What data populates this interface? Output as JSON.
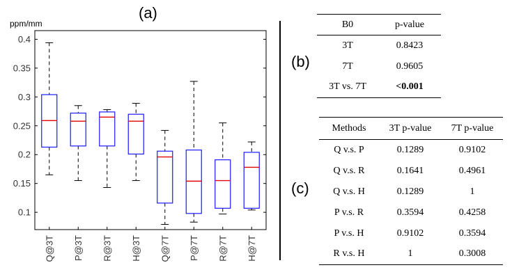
{
  "chart_data": {
    "type": "box",
    "title": "(a)",
    "ylabel": "ppm/mm",
    "ylim": [
      0.07,
      0.415
    ],
    "yticks": [
      0.1,
      0.15,
      0.2,
      0.25,
      0.3,
      0.35,
      0.4
    ],
    "ytick_labels": [
      "0.1",
      "0.15",
      "0.2",
      "0.25",
      "0.3",
      "0.35",
      "0.4"
    ],
    "categories": [
      "Q@3T",
      "P@3T",
      "R@3T",
      "H@3T",
      "Q@7T",
      "P@7T",
      "R@7T",
      "H@7T"
    ],
    "boxes": [
      {
        "min": 0.165,
        "q1": 0.213,
        "median": 0.259,
        "q3": 0.304,
        "max": 0.394
      },
      {
        "min": 0.155,
        "q1": 0.215,
        "median": 0.258,
        "q3": 0.272,
        "max": 0.285
      },
      {
        "min": 0.143,
        "q1": 0.215,
        "median": 0.265,
        "q3": 0.274,
        "max": 0.278
      },
      {
        "min": 0.155,
        "q1": 0.201,
        "median": 0.258,
        "q3": 0.27,
        "max": 0.289
      },
      {
        "min": 0.079,
        "q1": 0.116,
        "median": 0.196,
        "q3": 0.206,
        "max": 0.242
      },
      {
        "min": 0.083,
        "q1": 0.098,
        "median": 0.154,
        "q3": 0.208,
        "max": 0.327
      },
      {
        "min": 0.097,
        "q1": 0.107,
        "median": 0.155,
        "q3": 0.191,
        "max": 0.255
      },
      {
        "min": 0.104,
        "q1": 0.107,
        "median": 0.178,
        "q3": 0.204,
        "max": 0.222
      }
    ],
    "colors": {
      "box": "#1a1aff",
      "median": "#e00000",
      "whisker": "#000000"
    }
  },
  "panel_labels": {
    "a": "(a)",
    "b": "(b)",
    "c": "(c)"
  },
  "table_b": {
    "headers": [
      "B0",
      "p-value"
    ],
    "rows": [
      [
        "3T",
        "0.8423"
      ],
      [
        "7T",
        "0.9605"
      ],
      [
        "3T vs. 7T",
        "<0.001"
      ]
    ]
  },
  "table_c": {
    "headers": [
      "Methods",
      "3T p-value",
      "7T p-value"
    ],
    "rows": [
      [
        "Q v.s. P",
        "0.1289",
        "0.9102"
      ],
      [
        "Q v.s. R",
        "0.1641",
        "0.4961"
      ],
      [
        "Q v.s. H",
        "0.1289",
        "1"
      ],
      [
        "P v.s. R",
        "0.3594",
        "0.4258"
      ],
      [
        "P v.s. H",
        "0.9102",
        "0.3594"
      ],
      [
        "R v.s. H",
        "1",
        "0.3008"
      ]
    ]
  }
}
